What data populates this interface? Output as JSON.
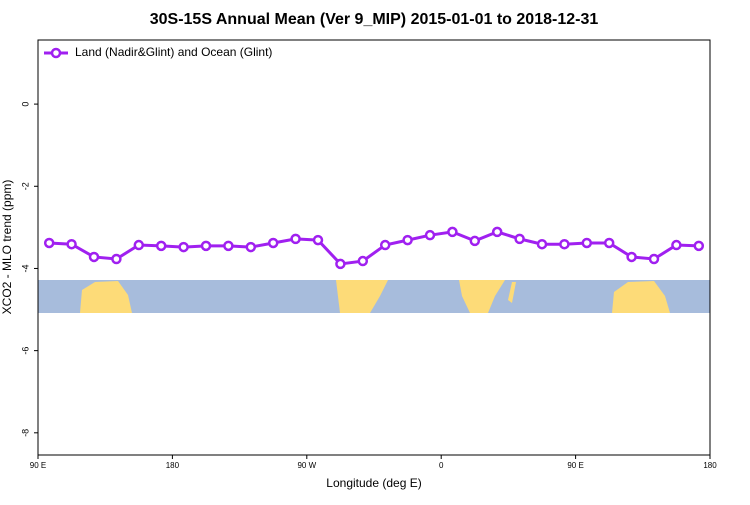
{
  "chart_data": {
    "type": "line",
    "title": "30S-15S Annual Mean (Ver 9_MIP)   2015-01-01 to 2018-12-31",
    "x_label": "Longitude (deg E)",
    "y_label": "XCO2 - MLO trend (ppm)",
    "x": [
      97.5,
      112.5,
      127.5,
      142.5,
      157.5,
      172.5,
      187.5,
      202.5,
      217.5,
      232.5,
      247.5,
      262.5,
      277.5,
      292.5,
      307.5,
      322.5,
      337.5,
      352.5,
      367.5,
      382.5,
      397.5,
      412.5,
      427.5,
      442.5,
      457.5,
      472.5,
      487.5,
      502.5,
      517.5,
      532.5
    ],
    "series": [
      {
        "name": "Land (Nadir&Glint) and Ocean (Glint)",
        "color": "#a020f0",
        "values": [
          -3.38,
          -3.41,
          -3.72,
          -3.77,
          -3.43,
          -3.45,
          -3.48,
          -3.45,
          -3.45,
          -3.48,
          -3.38,
          -3.28,
          -3.31,
          -3.89,
          -3.82,
          -3.43,
          -3.31,
          -3.19,
          -3.11,
          -3.33,
          -3.11,
          -3.28,
          -3.41,
          -3.41,
          -3.38,
          -3.38,
          -3.72,
          -3.77,
          -3.43,
          -3.45
        ]
      }
    ],
    "xlim": [
      90,
      540
    ],
    "xticks": [
      {
        "value": 90,
        "label": "90 E"
      },
      180,
      {
        "value": 270,
        "label": "90 W"
      },
      {
        "value": 360,
        "label": "0"
      },
      {
        "value": 450,
        "label": "90 E"
      },
      {
        "value": 540,
        "label": "180"
      }
    ],
    "ylim": [
      -8.54,
      1.56
    ],
    "yticks": [
      0,
      -2,
      -4,
      -6,
      -8
    ],
    "legend": "top-left"
  }
}
